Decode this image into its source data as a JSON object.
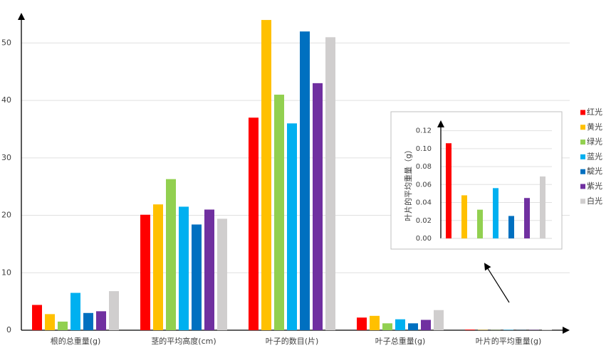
{
  "chart_data": [
    {
      "type": "bar",
      "categories": [
        "根的总重量(g)",
        "茎的平均高度(cm)",
        "叶子的数目(片)",
        "叶子总重量(g)",
        "叶片的平均重量(g)"
      ],
      "series": [
        {
          "name": "红光",
          "color": "#ff0000",
          "values": [
            4.4,
            20.1,
            37,
            2.2,
            0.106
          ]
        },
        {
          "name": "黄光",
          "color": "#ffc000",
          "values": [
            2.8,
            21.9,
            54,
            2.5,
            0.048
          ]
        },
        {
          "name": "绿光",
          "color": "#92d050",
          "values": [
            1.5,
            26.3,
            41,
            1.2,
            0.032
          ]
        },
        {
          "name": "蓝光",
          "color": "#00b0f0",
          "values": [
            6.5,
            21.5,
            36,
            1.9,
            0.056
          ]
        },
        {
          "name": "靛光",
          "color": "#0070c0",
          "values": [
            3.0,
            18.4,
            52,
            1.2,
            0.025
          ]
        },
        {
          "name": "紫光",
          "color": "#7030a0",
          "values": [
            3.3,
            21.0,
            43,
            1.8,
            0.045
          ]
        },
        {
          "name": "白光",
          "color": "#d0cece",
          "values": [
            6.8,
            19.4,
            51,
            3.5,
            0.069
          ]
        }
      ],
      "ylim": [
        0,
        55
      ],
      "yticks": [
        0,
        10,
        20,
        30,
        40,
        50
      ],
      "grid": true,
      "legend": "right"
    },
    {
      "type": "bar",
      "y_label": "叶片的平均重量（g）",
      "values": [
        0.106,
        0.048,
        0.032,
        0.056,
        0.025,
        0.045,
        0.069
      ],
      "colors": [
        "#ff0000",
        "#ffc000",
        "#92d050",
        "#00b0f0",
        "#0070c0",
        "#7030a0",
        "#d0cece"
      ],
      "ylim": [
        0,
        0.13
      ],
      "yticks": [
        {
          "value": 0,
          "label": "0.00"
        },
        {
          "value": 0.02,
          "label": "0.02"
        },
        {
          "value": 0.04,
          "label": "0.04"
        },
        {
          "value": 0.06,
          "label": "0.06"
        },
        {
          "value": 0.08,
          "label": "0.08"
        },
        {
          "value": 0.1,
          "label": "0.10"
        },
        {
          "value": 0.12,
          "label": "0.12"
        }
      ],
      "grid": true
    }
  ]
}
